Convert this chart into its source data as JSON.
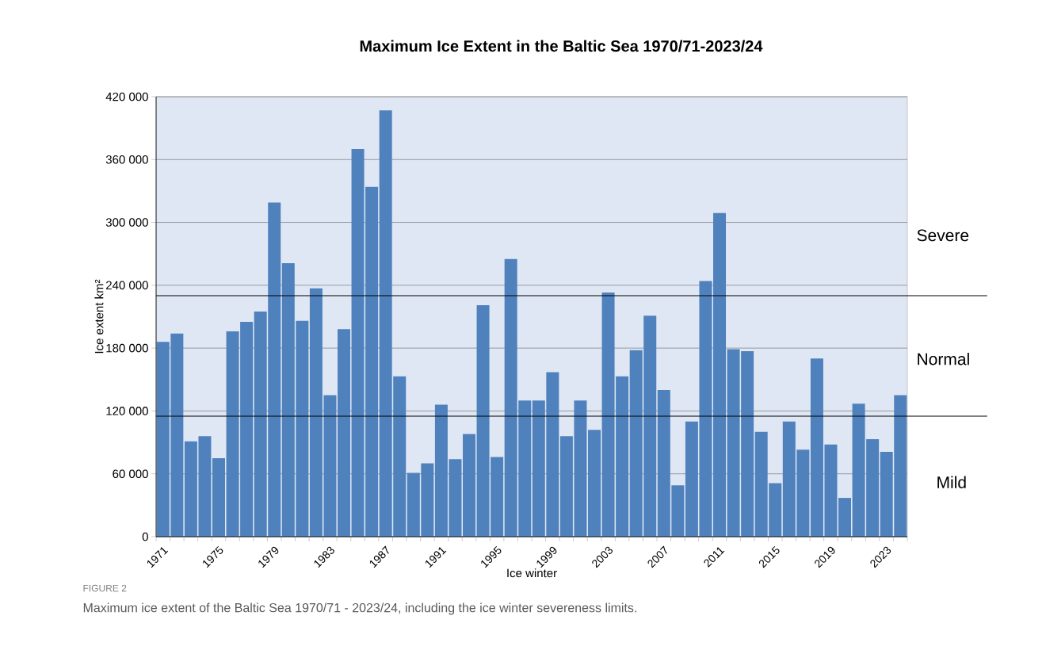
{
  "chart_data": {
    "type": "bar",
    "title": "Maximum Ice Extent in the Baltic Sea 1970/71-2023/24",
    "xlabel": "Ice winter",
    "ylabel": "Ice extent    km²",
    "categories": [
      "1971",
      null,
      null,
      null,
      "1975",
      null,
      null,
      null,
      "1979",
      null,
      null,
      null,
      "1983",
      null,
      null,
      null,
      "1987",
      null,
      null,
      null,
      "1991",
      null,
      null,
      null,
      "1995",
      null,
      null,
      null,
      "1999",
      null,
      null,
      null,
      "2003",
      null,
      null,
      null,
      "2007",
      null,
      null,
      null,
      "2011",
      null,
      null,
      null,
      "2015",
      null,
      null,
      null,
      "2019",
      null,
      null,
      null,
      "2023",
      null
    ],
    "values": [
      186000,
      194000,
      91000,
      96000,
      75000,
      196000,
      205000,
      215000,
      319000,
      261000,
      206000,
      237000,
      135000,
      198000,
      370000,
      334000,
      407000,
      153000,
      61000,
      70000,
      126000,
      74000,
      98000,
      221000,
      76000,
      265000,
      130000,
      130000,
      157000,
      96000,
      130000,
      102000,
      233000,
      153000,
      178000,
      211000,
      140000,
      49000,
      110000,
      244000,
      309000,
      179000,
      177000,
      100000,
      51000,
      110000,
      83000,
      170000,
      88000,
      37000,
      127000,
      93000,
      81000,
      135000
    ],
    "color": "#4f81bd",
    "ylim": [
      0,
      420000
    ],
    "yticks": [
      0,
      {
        "value": 60000,
        "label": "60 000"
      },
      {
        "value": 120000,
        "label": "120 000"
      },
      {
        "value": 180000,
        "label": "180 000"
      },
      {
        "value": 240000,
        "label": "240 000"
      },
      {
        "value": 300000,
        "label": "300 000"
      },
      {
        "value": 360000,
        "label": "360 000"
      },
      {
        "value": 420000,
        "label": "420 000"
      }
    ],
    "grid": "y",
    "ref_lines": [
      {
        "axis": "y",
        "value": 230000,
        "color": "#000000"
      },
      {
        "axis": "y",
        "value": 115000,
        "color": "#000000"
      }
    ],
    "annotations": [
      "Severe",
      "Normal",
      "Mild",
      "FIGURE 2",
      "Maximum ice extent of the Baltic Sea 1970/71 - 2023/24, including the ice winter severeness limits."
    ]
  }
}
